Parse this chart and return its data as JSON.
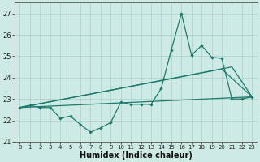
{
  "xlabel": "Humidex (Indice chaleur)",
  "background_color": "#ceeae5",
  "grid_color": "#aacfca",
  "line_color": "#1e7a6d",
  "x_jagged": [
    0,
    1,
    2,
    3,
    4,
    5,
    6,
    7,
    8,
    9,
    10,
    11,
    12,
    13,
    14,
    15,
    16,
    17,
    18,
    19,
    20,
    21,
    22,
    23
  ],
  "y_jagged": [
    22.6,
    22.7,
    22.6,
    22.6,
    22.1,
    22.2,
    21.8,
    21.45,
    21.65,
    21.9,
    22.85,
    22.75,
    22.75,
    22.75,
    23.5,
    25.3,
    27.0,
    25.05,
    25.5,
    24.95,
    24.9,
    23.0,
    23.0,
    23.1
  ],
  "line_A": {
    "x": [
      0,
      23
    ],
    "y": [
      22.6,
      23.1
    ]
  },
  "line_B": {
    "x": [
      0,
      20,
      23
    ],
    "y": [
      22.6,
      24.4,
      23.1
    ]
  },
  "line_C": {
    "x": [
      0,
      21,
      23
    ],
    "y": [
      22.6,
      24.5,
      23.1
    ]
  },
  "xlim": [
    -0.5,
    23.5
  ],
  "ylim": [
    21.0,
    27.5
  ],
  "yticks": [
    21,
    22,
    23,
    24,
    25,
    26,
    27
  ],
  "xticks": [
    0,
    1,
    2,
    3,
    4,
    5,
    6,
    7,
    8,
    9,
    10,
    11,
    12,
    13,
    14,
    15,
    16,
    17,
    18,
    19,
    20,
    21,
    22,
    23
  ]
}
